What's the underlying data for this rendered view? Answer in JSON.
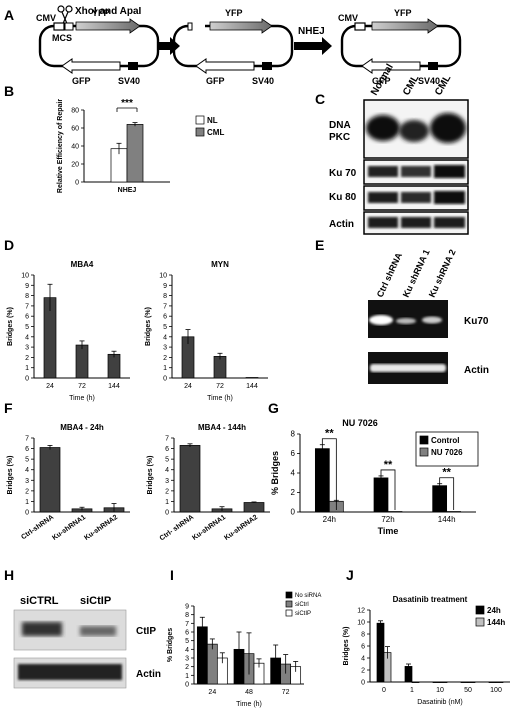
{
  "panel_letters": {
    "A": "A",
    "B": "B",
    "C": "C",
    "D": "D",
    "E": "E",
    "F": "F",
    "G": "G",
    "H": "H",
    "I": "I",
    "J": "J"
  },
  "panelA": {
    "scissor_label": "XhoI and ApaI",
    "cmv": "CMV",
    "yfp": "YFP",
    "mcs": "MCS",
    "gfp": "GFP",
    "sv40": "SV40",
    "nhej": "NHEJ"
  },
  "chart_data": [
    {
      "id": "B",
      "type": "bar",
      "categories": [
        "NHEJ"
      ],
      "series": [
        {
          "name": "NL",
          "values": [
            37
          ],
          "errors": [
            6
          ],
          "color": "#ffffff"
        },
        {
          "name": "CML",
          "values": [
            64
          ],
          "errors": [
            2
          ],
          "color": "#808080"
        }
      ],
      "ylabel": "Relative Efficiency of Repair",
      "ylim": [
        0,
        80
      ],
      "yticks": [
        0,
        20,
        40,
        60,
        80
      ],
      "annotation": "***",
      "legend": "top-right"
    },
    {
      "id": "D1",
      "type": "bar",
      "title": "MBA4",
      "categories": [
        "24",
        "72",
        "144"
      ],
      "values": [
        7.8,
        3.2,
        2.3
      ],
      "errors": [
        1.3,
        0.4,
        0.3
      ],
      "xlabel": "Time (h)",
      "ylabel": "Bridges (%)",
      "ylim": [
        0,
        10
      ],
      "yticks": [
        0,
        1,
        2,
        3,
        4,
        5,
        6,
        7,
        8,
        9,
        10
      ]
    },
    {
      "id": "D2",
      "type": "bar",
      "title": "MYN",
      "categories": [
        "24",
        "72",
        "144"
      ],
      "values": [
        4.0,
        2.1,
        0.05
      ],
      "errors": [
        0.7,
        0.3,
        0
      ],
      "xlabel": "Time (h)",
      "ylabel": "Bridges (%)",
      "ylim": [
        0,
        10
      ],
      "yticks": [
        0,
        1,
        2,
        3,
        4,
        5,
        6,
        7,
        8,
        9,
        10
      ]
    },
    {
      "id": "F1",
      "type": "bar",
      "title": "MBA4 - 24h",
      "categories": [
        "Ctrl-shRNA",
        "Ku-shRNA1",
        "Ku-shRNA2"
      ],
      "values": [
        6.1,
        0.3,
        0.4
      ],
      "errors": [
        0.2,
        0.15,
        0.4
      ],
      "ylabel": "Bridges (%)",
      "ylim": [
        0,
        7
      ],
      "yticks": [
        0,
        1,
        2,
        3,
        4,
        5,
        6,
        7
      ]
    },
    {
      "id": "F2",
      "type": "bar",
      "title": "MBA4 - 144h",
      "categories": [
        "Ctrl- shRNA",
        "Ku-shRNA1",
        "Ku-shRNA2"
      ],
      "values": [
        6.3,
        0.3,
        0.9
      ],
      "errors": [
        0.15,
        0.2,
        0.05
      ],
      "ylabel": "Bridges (%)",
      "ylim": [
        0,
        7
      ],
      "yticks": [
        0,
        1,
        2,
        3,
        4,
        5,
        6,
        7
      ]
    },
    {
      "id": "G",
      "type": "bar",
      "title": "NU 7026",
      "categories": [
        "24h",
        "72h",
        "144h"
      ],
      "series": [
        {
          "name": "Control",
          "values": [
            6.5,
            3.5,
            2.7
          ],
          "errors": [
            0.4,
            0.2,
            0.2
          ],
          "color": "#000000"
        },
        {
          "name": "NU 7026",
          "values": [
            1.1,
            0.05,
            0.05
          ],
          "errors": [
            0.1,
            0,
            0
          ],
          "color": "#808080"
        }
      ],
      "xlabel": "Time",
      "ylabel": "% Bridges",
      "ylim": [
        0,
        8
      ],
      "yticks": [
        0,
        2,
        4,
        6,
        8
      ],
      "annotation": "**",
      "legend": "top-right"
    },
    {
      "id": "I",
      "type": "bar",
      "categories": [
        "24",
        "48",
        "72"
      ],
      "series": [
        {
          "name": "No siRNA",
          "values": [
            6.6,
            4.0,
            3.0
          ],
          "errors": [
            1.1,
            2.0,
            1.5
          ],
          "color": "#000000"
        },
        {
          "name": "siCtrl",
          "values": [
            4.6,
            3.5,
            2.3
          ],
          "errors": [
            0.6,
            2.4,
            1.1
          ],
          "color": "#808080"
        },
        {
          "name": "siCtIP",
          "values": [
            3.0,
            2.4,
            2.0
          ],
          "errors": [
            0.6,
            0.5,
            0.6
          ],
          "color": "#ffffff"
        }
      ],
      "xlabel": "Time (h)",
      "ylabel": "% Bridges",
      "ylim": [
        0,
        9
      ],
      "yticks": [
        0,
        1,
        2,
        3,
        4,
        5,
        6,
        7,
        8,
        9
      ],
      "legend": "top-right"
    },
    {
      "id": "J",
      "type": "bar",
      "title": "Dasatinib treatment",
      "categories": [
        "0",
        "1",
        "10",
        "50",
        "100"
      ],
      "series": [
        {
          "name": "24h",
          "values": [
            9.8,
            2.6,
            0,
            0,
            0
          ],
          "errors": [
            0.4,
            0.4,
            0,
            0,
            0
          ],
          "color": "#000000"
        },
        {
          "name": "144h",
          "values": [
            4.9,
            0,
            0,
            0,
            0
          ],
          "errors": [
            1.0,
            0,
            0,
            0,
            0
          ],
          "color": "#c0c0c0"
        }
      ],
      "xlabel": "Dasatinib (nM)",
      "ylabel": "Bridges (%)",
      "ylim": [
        0,
        12
      ],
      "yticks": [
        0,
        2,
        4,
        6,
        8,
        10,
        12
      ],
      "legend": "top-right"
    }
  ],
  "blots": {
    "C": {
      "lanes": [
        "Normal",
        "CML",
        "CML"
      ],
      "rows": [
        "DNA\nPKC",
        "Ku 70",
        "Ku 80",
        "Actin"
      ]
    },
    "E": {
      "lanes": [
        "Ctrl shRNA",
        "Ku shRNA 1",
        "Ku shRNA 2"
      ],
      "rows": [
        "Ku70",
        "Actin"
      ]
    },
    "H": {
      "lanes": [
        "siCTRL",
        "siCtIP"
      ],
      "rows": [
        "CtIP",
        "Actin"
      ]
    }
  }
}
